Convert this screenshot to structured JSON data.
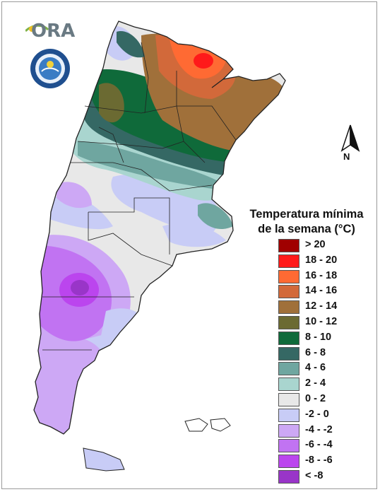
{
  "logos": {
    "ora_text": "ORA",
    "smn_seal_text": "SERVICIO METEOROLÓGICO NACIONAL · ARGENTINA · SMN"
  },
  "north_arrow": {
    "label": "N"
  },
  "legend": {
    "title_line1": "Temperatura mínima",
    "title_line2": "de la semana (°C)",
    "items": [
      {
        "label": "> 20",
        "color": "#a00000"
      },
      {
        "label": "18 - 20",
        "color": "#ff1a1a"
      },
      {
        "label": "16 - 18",
        "color": "#ff6a33"
      },
      {
        "label": "14 - 16",
        "color": "#d2693a"
      },
      {
        "label": "12 - 14",
        "color": "#a0703a"
      },
      {
        "label": "10 - 12",
        "color": "#6b6a32"
      },
      {
        "label": "8 - 10",
        "color": "#0f6a3a"
      },
      {
        "label": "6 - 8",
        "color": "#356864"
      },
      {
        "label": "4 - 6",
        "color": "#6fa6a0"
      },
      {
        "label": "2 - 4",
        "color": "#a9d5cf"
      },
      {
        "label": "0 - 2",
        "color": "#e8e8e8"
      },
      {
        "label": "-2 - 0",
        "color": "#c8ccf6"
      },
      {
        "label": "-4 - -2",
        "color": "#cda8f5"
      },
      {
        "label": "-6 - -4",
        "color": "#c173f2"
      },
      {
        "label": "-8 - -6",
        "color": "#bb45ee"
      },
      {
        "label": "< -8",
        "color": "#9935c8"
      }
    ]
  }
}
